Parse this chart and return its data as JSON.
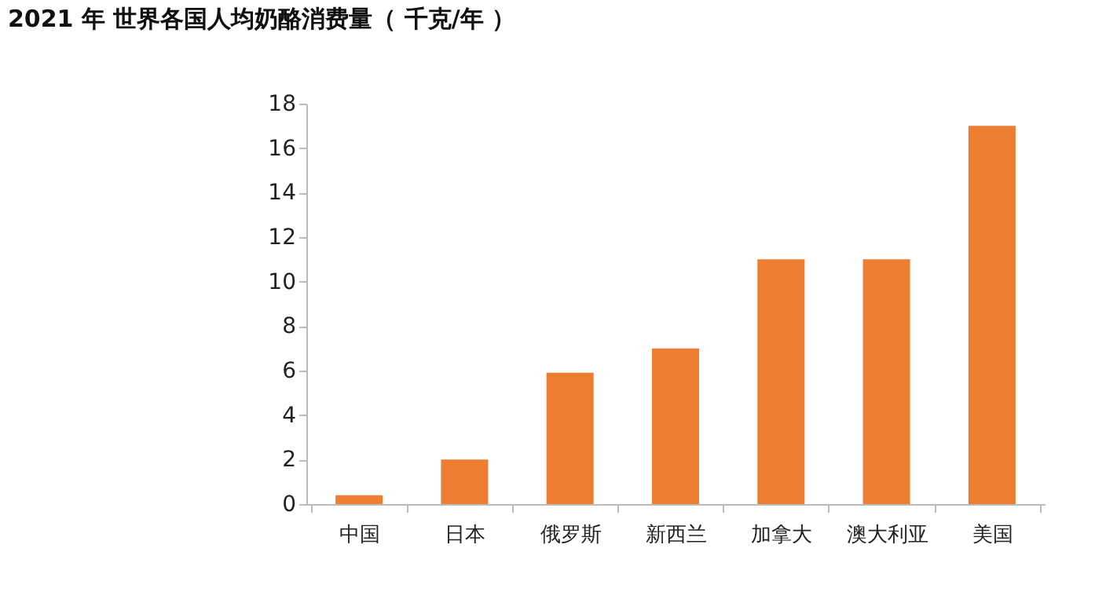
{
  "chart_data": {
    "type": "bar",
    "title": "2021 年 世界各国人均奶酪消费量（ 千克/年 ）",
    "categories": [
      "中国",
      "日本",
      "俄罗斯",
      "新西兰",
      "加拿大",
      "澳大利亚",
      "美国"
    ],
    "values": [
      0.4,
      2,
      5.9,
      7,
      11,
      11,
      17
    ],
    "color": "#ed7d31",
    "ylim": [
      0,
      18
    ],
    "yticks": [
      0,
      2,
      4,
      6,
      8,
      10,
      12,
      14,
      16,
      18
    ],
    "grid": false
  }
}
